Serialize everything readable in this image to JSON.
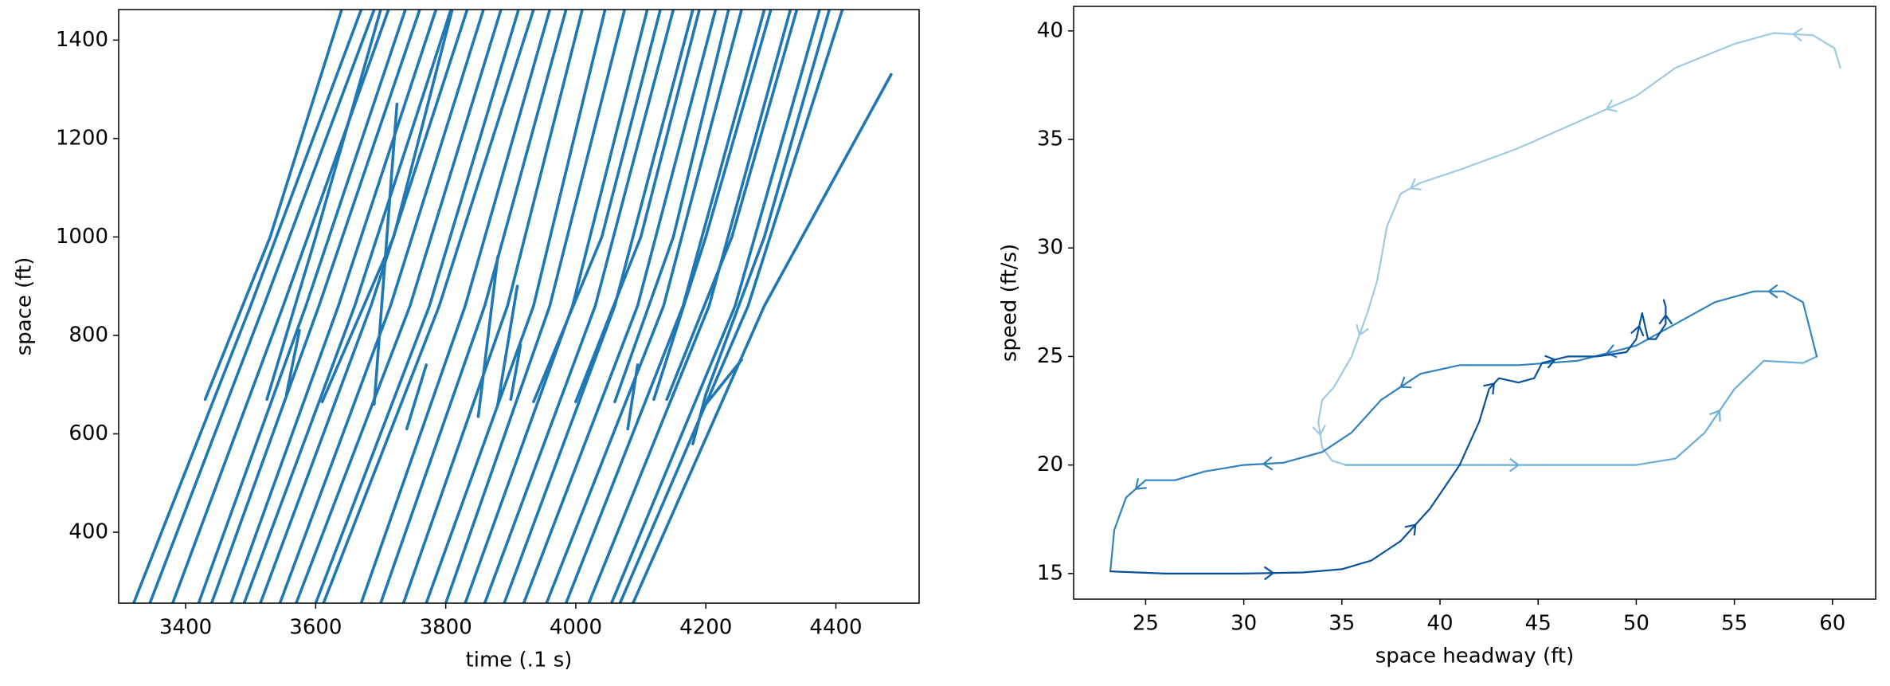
{
  "chart_data": [
    {
      "type": "line",
      "xlabel": "time (.1 s)",
      "ylabel": "space (ft)",
      "color": "#1f77b4",
      "xlim": [
        3297,
        4528
      ],
      "ylim": [
        256,
        1462
      ],
      "xticks": [
        3400,
        3600,
        3800,
        4000,
        4200,
        4400
      ],
      "yticks": [
        400,
        600,
        800,
        1000,
        1200,
        1400
      ],
      "series": [
        {
          "x": [
            3320,
            3500,
            3670
          ],
          "values": [
            256,
            860,
            1462
          ]
        },
        {
          "x": [
            3345,
            3520,
            3690
          ],
          "values": [
            256,
            860,
            1462
          ]
        },
        {
          "x": [
            3380,
            3550,
            3712
          ],
          "values": [
            256,
            860,
            1462
          ]
        },
        {
          "x": [
            3420,
            3585,
            3738
          ],
          "values": [
            256,
            860,
            1462
          ]
        },
        {
          "x": [
            3440,
            3605,
            3760
          ],
          "values": [
            256,
            860,
            1462
          ]
        },
        {
          "x": [
            3470,
            3635,
            3785
          ],
          "values": [
            256,
            860,
            1462
          ]
        },
        {
          "x": [
            3490,
            3660,
            3808
          ],
          "values": [
            256,
            860,
            1462
          ]
        },
        {
          "x": [
            3515,
            3685,
            3833
          ],
          "values": [
            256,
            860,
            1462
          ]
        },
        {
          "x": [
            3545,
            3715,
            3858
          ],
          "values": [
            256,
            860,
            1462
          ]
        },
        {
          "x": [
            3570,
            3745,
            3885
          ],
          "values": [
            256,
            860,
            1462
          ]
        },
        {
          "x": [
            3600,
            3775,
            3912
          ],
          "values": [
            256,
            860,
            1462
          ]
        },
        {
          "x": [
            3612,
            3790,
            3935
          ],
          "values": [
            256,
            860,
            1462
          ]
        },
        {
          "x": [
            3670,
            3830,
            3960
          ],
          "values": [
            256,
            860,
            1462
          ]
        },
        {
          "x": [
            3700,
            3860,
            3985
          ],
          "values": [
            256,
            860,
            1462
          ]
        },
        {
          "x": [
            3735,
            3895,
            4010
          ],
          "values": [
            256,
            860,
            1462
          ]
        },
        {
          "x": [
            3770,
            3935,
            4045
          ],
          "values": [
            256,
            860,
            1462
          ]
        },
        {
          "x": [
            3800,
            3960,
            4075
          ],
          "values": [
            256,
            860,
            1462
          ]
        },
        {
          "x": [
            3830,
            3995,
            4110
          ],
          "values": [
            256,
            860,
            1462
          ]
        },
        {
          "x": [
            3860,
            4030,
            4150
          ],
          "values": [
            256,
            860,
            1462
          ]
        },
        {
          "x": [
            3890,
            4060,
            4180
          ],
          "values": [
            256,
            860,
            1462
          ]
        },
        {
          "x": [
            3920,
            4095,
            4215
          ],
          "values": [
            256,
            860,
            1462
          ]
        },
        {
          "x": [
            3955,
            4135,
            4255
          ],
          "values": [
            256,
            860,
            1462
          ]
        },
        {
          "x": [
            3985,
            4165,
            4290
          ],
          "values": [
            256,
            860,
            1462
          ]
        },
        {
          "x": [
            4020,
            4205,
            4330
          ],
          "values": [
            256,
            860,
            1462
          ]
        },
        {
          "x": [
            4055,
            4245,
            4375
          ],
          "values": [
            256,
            860,
            1462
          ]
        },
        {
          "x": [
            4068,
            4265,
            4410
          ],
          "values": [
            256,
            860,
            1462
          ]
        },
        {
          "x": [
            4088,
            4290,
            4485
          ],
          "values": [
            256,
            860,
            1330
          ]
        },
        {
          "x": [
            3430,
            3530,
            3640
          ],
          "values": [
            670,
            1000,
            1462
          ]
        },
        {
          "x": [
            3525,
            3600,
            3700
          ],
          "values": [
            670,
            1000,
            1462
          ]
        },
        {
          "x": [
            3555,
            3575
          ],
          "values": [
            680,
            810
          ]
        },
        {
          "x": [
            3610,
            3720,
            3810
          ],
          "values": [
            665,
            1000,
            1462
          ]
        },
        {
          "x": [
            3690,
            3725
          ],
          "values": [
            660,
            1270
          ]
        },
        {
          "x": [
            3740,
            3770
          ],
          "values": [
            610,
            740
          ]
        },
        {
          "x": [
            3850,
            3880
          ],
          "values": [
            635,
            960
          ]
        },
        {
          "x": [
            3880,
            3910
          ],
          "values": [
            660,
            900
          ]
        },
        {
          "x": [
            3900,
            3915
          ],
          "values": [
            670,
            780
          ]
        },
        {
          "x": [
            3935,
            4040,
            4130
          ],
          "values": [
            665,
            1000,
            1462
          ]
        },
        {
          "x": [
            4000,
            4100,
            4190
          ],
          "values": [
            665,
            1000,
            1462
          ]
        },
        {
          "x": [
            4060,
            4150,
            4235
          ],
          "values": [
            665,
            1000,
            1462
          ]
        },
        {
          "x": [
            4080,
            4095
          ],
          "values": [
            610,
            740
          ]
        },
        {
          "x": [
            4120,
            4200,
            4300
          ],
          "values": [
            670,
            1000,
            1462
          ]
        },
        {
          "x": [
            4140,
            4240,
            4340
          ],
          "values": [
            670,
            1000,
            1462
          ]
        },
        {
          "x": [
            4180,
            4200,
            4290,
            4390
          ],
          "values": [
            580,
            680,
            1000,
            1462
          ]
        },
        {
          "x": [
            4200,
            4255
          ],
          "values": [
            660,
            750
          ]
        }
      ]
    },
    {
      "type": "line",
      "xlabel": "space headway (ft)",
      "ylabel": "speed (ft/s)",
      "arrows": true,
      "xlim": [
        21.33,
        62.2
      ],
      "ylim": [
        13.82,
        41.13
      ],
      "xticks": [
        25,
        30,
        35,
        40,
        45,
        50,
        55,
        60
      ],
      "yticks": [
        15,
        20,
        25,
        30,
        35,
        40
      ],
      "series": [
        {
          "color": "#9ecae1",
          "x": [
            60.4,
            60.1,
            59,
            57,
            55,
            52,
            50,
            47,
            44,
            41,
            39,
            38,
            37.3,
            36.8,
            36.3,
            35.5,
            34.6,
            34,
            33.8,
            34,
            34.5,
            35.2
          ],
          "values": [
            38.3,
            39.2,
            39.8,
            39.9,
            39.4,
            38.3,
            37,
            35.8,
            34.6,
            33.6,
            33,
            32.5,
            31,
            28.5,
            27,
            25,
            23.6,
            23,
            22,
            20.8,
            20.2,
            20
          ]
        },
        {
          "color": "#6baed6",
          "x": [
            35.2,
            38,
            42,
            46,
            50,
            52,
            53.5,
            55,
            56.5,
            58.5,
            59.2
          ],
          "values": [
            20,
            20,
            20,
            20,
            20,
            20.3,
            21.5,
            23.5,
            24.8,
            24.7,
            25
          ]
        },
        {
          "color": "#3182bd",
          "x": [
            59.2,
            58.5,
            57.5,
            56,
            54,
            52,
            50,
            47,
            44,
            41,
            39,
            37,
            35.5,
            34,
            32,
            30,
            28,
            26.5,
            25,
            24,
            23.4,
            23.2
          ],
          "values": [
            25,
            27.5,
            28,
            28,
            27.5,
            26.5,
            25.5,
            24.8,
            24.6,
            24.6,
            24.2,
            23,
            21.5,
            20.6,
            20.1,
            20,
            19.7,
            19.3,
            19.3,
            18.5,
            17,
            15.1
          ]
        },
        {
          "color": "#08519c",
          "x": [
            23.2,
            26,
            30,
            33,
            35,
            36.5,
            38,
            39.5,
            41,
            42,
            42.5,
            43,
            44,
            44.8,
            45.2,
            46.5,
            48,
            49.5,
            50,
            50.3,
            50.6,
            51,
            51.5,
            51.5,
            51.4
          ],
          "values": [
            15.1,
            15,
            15,
            15.05,
            15.2,
            15.6,
            16.5,
            18,
            20,
            22,
            23.5,
            24,
            23.8,
            24,
            24.7,
            25,
            25,
            25.2,
            25.8,
            27,
            25.8,
            25.8,
            26.5,
            27.3,
            27.6
          ]
        }
      ]
    }
  ]
}
